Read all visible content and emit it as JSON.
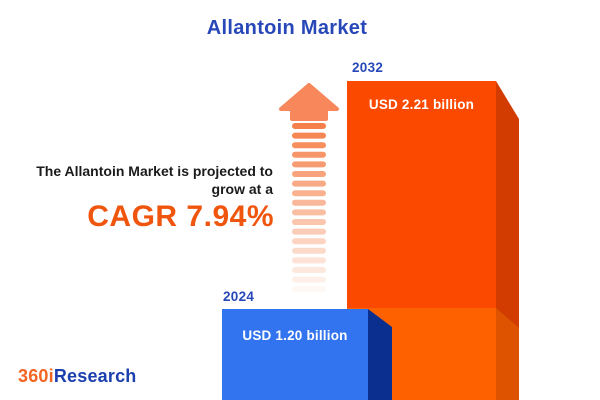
{
  "header": {
    "title": "Allantoin Market"
  },
  "annotation": {
    "line1": "The Allantoin Market is projected to",
    "line2": "grow at a",
    "cagr": "CAGR 7.94%"
  },
  "bars": {
    "b2024": {
      "year": "2024",
      "value_label": "USD 1.20 billion"
    },
    "b2032": {
      "year": "2032",
      "value_label": "USD 2.21 billion"
    }
  },
  "footer": {
    "logo_prefix": "360i",
    "logo_suffix": "Research"
  },
  "colors": {
    "title_blue": "#2847b8",
    "cagr_orange": "#f0550e",
    "annotation_text": "#1b1b1b",
    "bar_2032_front": "#fb4a00",
    "bar_2032_side": "#d23c00",
    "base_box_front": "#fe6200",
    "base_box_side": "#dd5300",
    "bar_2024_front": "#3273ef",
    "bar_2024_side": "#0a2f8e",
    "arrow_head": "#f8885c",
    "arrow_dash": "#f5804a",
    "logo_orange": "#f26522",
    "logo_blue": "#1c3fae",
    "background": "#ffffff"
  },
  "chart_data": {
    "type": "bar",
    "title": "Allantoin Market",
    "categories": [
      "2024",
      "2032"
    ],
    "values": [
      1.2,
      2.21
    ],
    "unit": "USD billion",
    "value_labels": [
      "USD 1.20 billion",
      "USD 2.21 billion"
    ],
    "bar_colors": [
      "#3273ef",
      "#fb4a00"
    ],
    "annotation": "The Allantoin Market is projected to grow at a CAGR 7.94%",
    "cagr_percent": 7.94,
    "legend": "none",
    "grid": false,
    "axes_shown": false
  }
}
